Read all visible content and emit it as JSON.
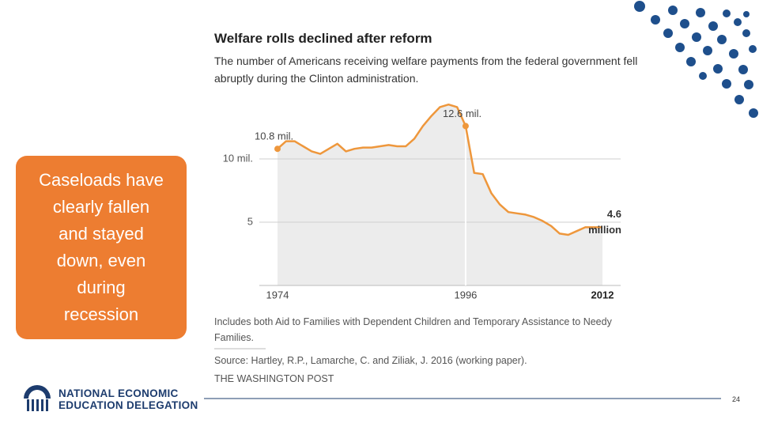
{
  "chart_data": {
    "type": "line",
    "title": "Welfare rolls declined after reform",
    "subtitle": "The number of Americans receiving welfare payments from the federal government fell abruptly during the Clinton administration.",
    "x": [
      1974,
      1975,
      1976,
      1977,
      1978,
      1979,
      1980,
      1981,
      1982,
      1983,
      1984,
      1985,
      1986,
      1987,
      1988,
      1989,
      1990,
      1991,
      1992,
      1993,
      1994,
      1995,
      1996,
      1997,
      1998,
      1999,
      2000,
      2001,
      2002,
      2003,
      2004,
      2005,
      2006,
      2007,
      2008,
      2009,
      2010,
      2011,
      2012
    ],
    "series": [
      {
        "name": "Welfare recipients",
        "color": "#ee973c",
        "values": [
          10.8,
          11.4,
          11.4,
          11.0,
          10.6,
          10.4,
          10.8,
          11.2,
          10.6,
          10.8,
          10.9,
          10.9,
          11.0,
          11.1,
          11.0,
          11.0,
          11.6,
          12.6,
          13.4,
          14.1,
          14.3,
          14.1,
          12.6,
          8.9,
          8.8,
          7.3,
          6.4,
          5.8,
          5.7,
          5.6,
          5.4,
          5.1,
          4.7,
          4.1,
          4.0,
          4.3,
          4.6,
          4.6,
          4.6
        ]
      }
    ],
    "area_color": "#ececec",
    "xlim": [
      1974,
      2012
    ],
    "xticks": [
      1974,
      1996,
      2012
    ],
    "ylim": [
      0,
      15
    ],
    "yticks": [
      {
        "value": 10,
        "label": "10 mil."
      },
      5
    ],
    "grid": true,
    "annotations": [
      {
        "x": 1974,
        "label": [
          "10.8 mil."
        ]
      },
      {
        "x": 1996,
        "label": [
          "12.6 mil."
        ]
      },
      {
        "x": 2012,
        "label": [
          "4.6",
          "million"
        ]
      }
    ],
    "note": "Includes both Aid to Families with Dependent Children and Temporary Assistance to Needy Families.",
    "source": "Source: Hartley, R.P., Lamarche, C. and Ziliak, J. 2016 (working paper).",
    "credit": "THE WASHINGTON POST"
  },
  "sidebar": {
    "lines": [
      "Caseloads have",
      "clearly fallen",
      "and stayed",
      "down, even",
      "during",
      "recession"
    ]
  },
  "footer": {
    "logo_lines": [
      "NATIONAL ECONOMIC",
      "EDUCATION DELEGATION"
    ],
    "page_number": "24"
  }
}
